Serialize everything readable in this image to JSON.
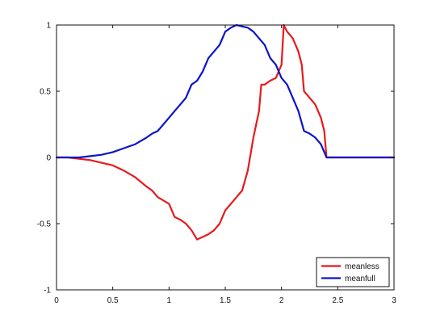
{
  "chart_data": {
    "type": "line",
    "title": "",
    "xlabel": "",
    "ylabel": "",
    "xlim": [
      0,
      3
    ],
    "ylim": [
      -1,
      1
    ],
    "x_ticks": [
      0,
      0.5,
      1,
      1.5,
      2,
      2.5,
      3
    ],
    "x_tick_labels": [
      "0",
      "0.5",
      "1",
      "1.5",
      "2",
      "2.5",
      "3"
    ],
    "y_ticks": [
      -1,
      -0.5,
      0,
      0.5,
      1
    ],
    "y_tick_labels": [
      "-1",
      "-0.5",
      "0",
      "0.5",
      "1"
    ],
    "grid": false,
    "legend": {
      "position": "bottom-right",
      "entries": [
        "meanless",
        "meanfull"
      ]
    },
    "series": [
      {
        "name": "meanless",
        "color": "#e8191c",
        "x": [
          0,
          0.1,
          0.2,
          0.3,
          0.4,
          0.5,
          0.6,
          0.7,
          0.8,
          0.85,
          0.9,
          1.0,
          1.05,
          1.1,
          1.15,
          1.2,
          1.25,
          1.3,
          1.35,
          1.4,
          1.45,
          1.5,
          1.6,
          1.65,
          1.7,
          1.75,
          1.8,
          1.82,
          1.85,
          1.9,
          1.95,
          2.0,
          2.02,
          2.05,
          2.1,
          2.15,
          2.18,
          2.2,
          2.25,
          2.3,
          2.35,
          2.38,
          2.4,
          2.42,
          2.5,
          2.8,
          3.0
        ],
        "y": [
          0,
          0,
          -0.01,
          -0.02,
          -0.04,
          -0.06,
          -0.1,
          -0.15,
          -0.22,
          -0.25,
          -0.3,
          -0.35,
          -0.45,
          -0.47,
          -0.5,
          -0.55,
          -0.62,
          -0.6,
          -0.58,
          -0.55,
          -0.5,
          -0.4,
          -0.3,
          -0.25,
          -0.1,
          0.15,
          0.35,
          0.55,
          0.55,
          0.58,
          0.6,
          0.7,
          1.0,
          0.95,
          0.9,
          0.8,
          0.7,
          0.5,
          0.45,
          0.4,
          0.3,
          0.2,
          0,
          0,
          0,
          0,
          0
        ]
      },
      {
        "name": "meanfull",
        "color": "#0a14c8",
        "x": [
          0,
          0.1,
          0.2,
          0.3,
          0.4,
          0.5,
          0.6,
          0.7,
          0.8,
          0.85,
          0.9,
          0.95,
          1.0,
          1.05,
          1.1,
          1.15,
          1.2,
          1.25,
          1.3,
          1.35,
          1.4,
          1.45,
          1.5,
          1.55,
          1.6,
          1.65,
          1.7,
          1.75,
          1.8,
          1.85,
          1.9,
          1.95,
          2.0,
          2.05,
          2.1,
          2.15,
          2.2,
          2.25,
          2.3,
          2.35,
          2.4,
          2.42,
          2.5,
          2.8,
          3.0
        ],
        "y": [
          0,
          0,
          0,
          0.01,
          0.02,
          0.04,
          0.07,
          0.1,
          0.15,
          0.18,
          0.2,
          0.25,
          0.3,
          0.35,
          0.4,
          0.45,
          0.55,
          0.58,
          0.65,
          0.75,
          0.8,
          0.85,
          0.95,
          0.98,
          1.0,
          0.99,
          0.98,
          0.95,
          0.9,
          0.85,
          0.75,
          0.7,
          0.6,
          0.55,
          0.45,
          0.35,
          0.2,
          0.18,
          0.15,
          0.1,
          0,
          0,
          0,
          0,
          0
        ]
      }
    ]
  }
}
